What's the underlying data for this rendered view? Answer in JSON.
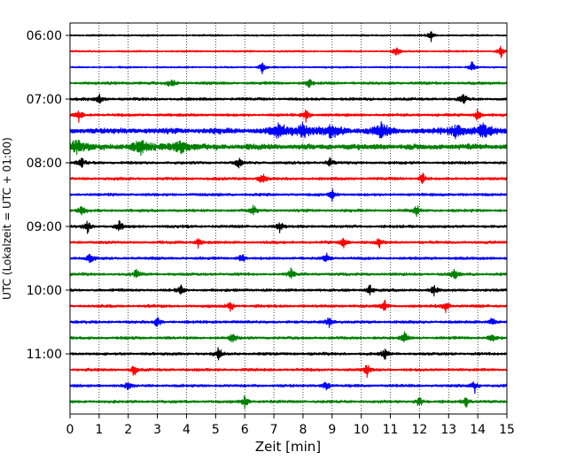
{
  "chart_data": {
    "type": "line",
    "title": "",
    "xlabel": "Zeit  [min]",
    "ylabel": "UTC (Lokalzeit = UTC + 01:00)",
    "xlim": [
      0,
      15
    ],
    "x_ticks": [
      "0",
      "1",
      "2",
      "3",
      "4",
      "5",
      "6",
      "7",
      "8",
      "9",
      "10",
      "11",
      "12",
      "13",
      "14",
      "15"
    ],
    "y_ticks": [
      "06:00",
      "07:00",
      "08:00",
      "09:00",
      "10:00",
      "11:00"
    ],
    "grid": "vertical dotted",
    "legend": "none",
    "trace_interval_min": 15,
    "first_trace_start": "06:00",
    "trace_colors": [
      "#000000",
      "#ff0000",
      "#0000ff",
      "#008000"
    ],
    "series": [
      {
        "start": "06:00",
        "color": "#000000",
        "activity": "low",
        "events_min": [
          12.4
        ]
      },
      {
        "start": "06:15",
        "color": "#ff0000",
        "activity": "low",
        "events_min": [
          11.2,
          14.8
        ]
      },
      {
        "start": "06:30",
        "color": "#0000ff",
        "activity": "low",
        "events_min": [
          6.6,
          13.8
        ]
      },
      {
        "start": "06:45",
        "color": "#008000",
        "activity": "moderate",
        "events_min": [
          3.5,
          8.2
        ]
      },
      {
        "start": "07:00",
        "color": "#000000",
        "activity": "moderate",
        "events_min": [
          1.0,
          13.5
        ]
      },
      {
        "start": "07:15",
        "color": "#ff0000",
        "activity": "moderate",
        "events_min": [
          0.3,
          8.1,
          14.0
        ]
      },
      {
        "start": "07:30",
        "color": "#0000ff",
        "activity": "high",
        "events_min": [
          7.2,
          8.0,
          9.0,
          10.7,
          13.3,
          14.2
        ]
      },
      {
        "start": "07:45",
        "color": "#008000",
        "activity": "high",
        "events_min": [
          0.2,
          2.4,
          3.8
        ]
      },
      {
        "start": "08:00",
        "color": "#000000",
        "activity": "moderate",
        "events_min": [
          0.4,
          5.8,
          8.9
        ]
      },
      {
        "start": "08:15",
        "color": "#ff0000",
        "activity": "moderate",
        "events_min": [
          6.6,
          12.1
        ]
      },
      {
        "start": "08:30",
        "color": "#0000ff",
        "activity": "moderate",
        "events_min": [
          9.0
        ]
      },
      {
        "start": "08:45",
        "color": "#008000",
        "activity": "moderate",
        "events_min": [
          0.4,
          6.3,
          11.9
        ]
      },
      {
        "start": "09:00",
        "color": "#000000",
        "activity": "moderate",
        "events_min": [
          0.6,
          1.7,
          7.2
        ]
      },
      {
        "start": "09:15",
        "color": "#ff0000",
        "activity": "moderate",
        "events_min": [
          4.4,
          9.4,
          10.6
        ]
      },
      {
        "start": "09:30",
        "color": "#0000ff",
        "activity": "moderate",
        "events_min": [
          0.7,
          5.9,
          8.8
        ]
      },
      {
        "start": "09:45",
        "color": "#008000",
        "activity": "moderate",
        "events_min": [
          2.3,
          7.6,
          13.2
        ]
      },
      {
        "start": "10:00",
        "color": "#000000",
        "activity": "moderate",
        "events_min": [
          3.8,
          10.3,
          12.5
        ]
      },
      {
        "start": "10:15",
        "color": "#ff0000",
        "activity": "moderate",
        "events_min": [
          5.5,
          10.8,
          12.9
        ]
      },
      {
        "start": "10:30",
        "color": "#0000ff",
        "activity": "moderate",
        "events_min": [
          3.0,
          8.9,
          14.5
        ]
      },
      {
        "start": "10:45",
        "color": "#008000",
        "activity": "moderate",
        "events_min": [
          5.6,
          11.5,
          14.5
        ]
      },
      {
        "start": "11:00",
        "color": "#000000",
        "activity": "moderate",
        "events_min": [
          5.1,
          10.8
        ]
      },
      {
        "start": "11:15",
        "color": "#ff0000",
        "activity": "moderate",
        "events_min": [
          2.2,
          10.2
        ]
      },
      {
        "start": "11:30",
        "color": "#0000ff",
        "activity": "moderate",
        "events_min": [
          2.0,
          8.8,
          13.9
        ]
      },
      {
        "start": "11:45",
        "color": "#008000",
        "activity": "moderate",
        "events_min": [
          6.0,
          12.0,
          13.6
        ]
      }
    ]
  }
}
